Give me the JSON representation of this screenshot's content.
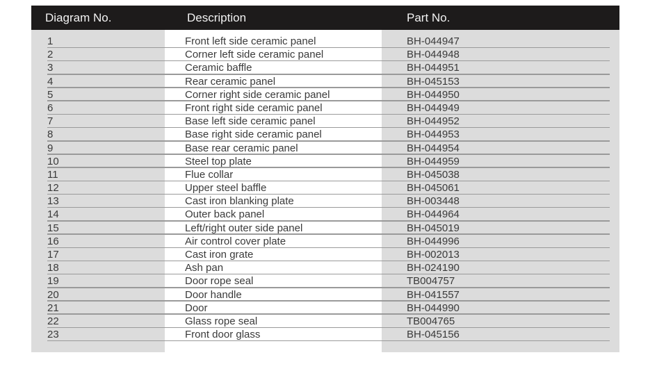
{
  "header": {
    "diagram_no": "Diagram No.",
    "description": "Description",
    "part_no": "Part No."
  },
  "rows": [
    {
      "no": "1",
      "desc": "Front left side ceramic panel",
      "part": "BH-044947"
    },
    {
      "no": "2",
      "desc": "Corner left side ceramic panel",
      "part": "BH-044948"
    },
    {
      "no": "3",
      "desc": "Ceramic baffle",
      "part": "BH-044951"
    },
    {
      "no": "4",
      "desc": "Rear ceramic panel",
      "part": "BH-045153"
    },
    {
      "no": "5",
      "desc": "Corner right side ceramic panel",
      "part": "BH-044950"
    },
    {
      "no": "6",
      "desc": "Front right side ceramic panel",
      "part": "BH-044949"
    },
    {
      "no": "7",
      "desc": "Base left side ceramic panel",
      "part": "BH-044952"
    },
    {
      "no": "8",
      "desc": "Base right side ceramic panel",
      "part": "BH-044953"
    },
    {
      "no": "9",
      "desc": "Base rear ceramic panel",
      "part": "BH-044954"
    },
    {
      "no": "10",
      "desc": "Steel top plate",
      "part": "BH-044959"
    },
    {
      "no": "11",
      "desc": "Flue collar",
      "part": "BH-045038"
    },
    {
      "no": "12",
      "desc": "Upper steel baffle",
      "part": "BH-045061"
    },
    {
      "no": "13",
      "desc": "Cast iron blanking plate",
      "part": "BH-003448"
    },
    {
      "no": "14",
      "desc": "Outer back panel",
      "part": "BH-044964"
    },
    {
      "no": "15",
      "desc": "Left/right outer side panel",
      "part": "BH-045019"
    },
    {
      "no": "16",
      "desc": "Air control cover plate",
      "part": "BH-044996"
    },
    {
      "no": "17",
      "desc": "Cast iron grate",
      "part": "BH-002013"
    },
    {
      "no": "18",
      "desc": "Ash pan",
      "part": "BH-024190"
    },
    {
      "no": "19",
      "desc": "Door rope seal",
      "part": "TB004757"
    },
    {
      "no": "20",
      "desc": "Door handle",
      "part": "BH-041557"
    },
    {
      "no": "21",
      "desc": "Door",
      "part": "BH-044990"
    },
    {
      "no": "22",
      "desc": "Glass rope seal",
      "part": "TB004765"
    },
    {
      "no": "23",
      "desc": "Front door glass",
      "part": "BH-045156"
    }
  ]
}
